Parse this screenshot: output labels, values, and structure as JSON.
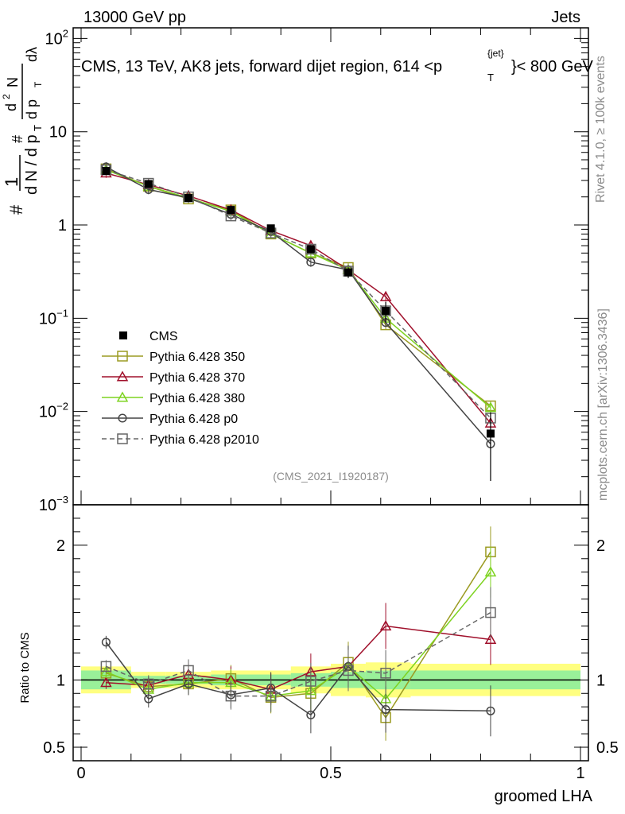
{
  "header": {
    "left": "13000 GeV pp",
    "right": "Jets",
    "title": "CMS, 13 TeV, AK8 jets, forward dijet region, 614 <p",
    "title_sup": "{jet}",
    "title_sub": "T",
    "title_end": "}< 800 GeV"
  },
  "sidebar": {
    "rivet": "Rivet 4.1.0, ≥ 100k events",
    "mcplots": "mcplots.cern.ch [arXiv:1306.3436]"
  },
  "analysis_tag": "(CMS_2021_I1920187)",
  "axes": {
    "ylabel_top": "# 1/dN/dp_T # d²N/dp_T dλ",
    "ylabel_ratio": "Ratio to CMS",
    "xlabel": "groomed LHA",
    "x_ticks": [
      "0",
      "0.5",
      "1"
    ],
    "y_ticks_top": [
      {
        "value": 100,
        "base": "10",
        "exp": "2"
      },
      {
        "value": 10,
        "base": "10",
        "exp": ""
      },
      {
        "value": 1,
        "base": "1",
        "exp": ""
      },
      {
        "value": 0.1,
        "base": "10",
        "exp": "−1"
      },
      {
        "value": 0.01,
        "base": "10",
        "exp": "−2"
      },
      {
        "value": 0.001,
        "base": "10",
        "exp": "−3"
      }
    ],
    "y_ticks_ratio": [
      {
        "value": 2,
        "label": "2"
      },
      {
        "value": 1,
        "label": "1"
      },
      {
        "value": 0.5,
        "label": "0.5"
      }
    ]
  },
  "chart_data": {
    "type": "line",
    "title": "CMS, 13 TeV, AK8 jets, forward dijet region, 614 < p_T^{jet} < 800 GeV",
    "xlabel": "groomed LHA",
    "ylabel": "1/dN/dp_T d²N/dp_T dλ",
    "xlim": [
      0,
      1
    ],
    "ylim": [
      0.001,
      130
    ],
    "yscale": "log",
    "ratio_ylim": [
      0.4,
      2.3
    ],
    "bin_edges": [
      0,
      0.1,
      0.17,
      0.26,
      0.34,
      0.42,
      0.5,
      0.57,
      0.66,
      1.0
    ],
    "x": [
      0.05,
      0.135,
      0.215,
      0.3,
      0.38,
      0.46,
      0.535,
      0.61,
      0.82
    ],
    "data": {
      "name": "CMS",
      "values": [
        3.8,
        2.75,
        1.95,
        1.45,
        0.92,
        0.55,
        0.31,
        0.12,
        0.0058
      ],
      "errors": [
        0.3,
        0.15,
        0.12,
        0.1,
        0.07,
        0.05,
        0.04,
        0.03,
        0.004
      ],
      "ratio_band_inner": [
        0.07,
        0.03,
        0.03,
        0.04,
        0.04,
        0.05,
        0.06,
        0.07,
        0.07
      ],
      "ratio_band_outer": [
        0.1,
        0.06,
        0.06,
        0.07,
        0.07,
        0.1,
        0.12,
        0.13,
        0.12
      ]
    },
    "series": [
      {
        "name": "Pythia 6.428 350",
        "color": "#9b9b22",
        "marker": "square",
        "values": [
          4.0,
          2.6,
          1.9,
          1.45,
          0.8,
          0.5,
          0.35,
          0.085,
          0.0115
        ],
        "ratio": [
          1.05,
          0.95,
          0.97,
          1.01,
          0.87,
          0.9,
          1.13,
          0.72,
          1.95
        ]
      },
      {
        "name": "Pythia 6.428 370",
        "color": "#a0102b",
        "marker": "triangle",
        "values": [
          3.6,
          2.7,
          2.05,
          1.45,
          0.87,
          0.6,
          0.33,
          0.17,
          0.0075
        ],
        "ratio": [
          0.98,
          0.96,
          1.04,
          1.0,
          0.93,
          1.06,
          1.1,
          1.4,
          1.3
        ]
      },
      {
        "name": "Pythia 6.428 380",
        "color": "#7ed321",
        "marker": "triangle",
        "values": [
          3.9,
          2.6,
          1.95,
          1.4,
          0.8,
          0.5,
          0.33,
          0.1,
          0.011
        ],
        "ratio": [
          1.06,
          0.93,
          0.98,
          0.98,
          0.88,
          0.92,
          1.1,
          0.86,
          1.8
        ]
      },
      {
        "name": "Pythia 6.428 p0",
        "color": "#444444",
        "marker": "circle",
        "values": [
          4.2,
          2.4,
          1.95,
          1.3,
          0.85,
          0.4,
          0.33,
          0.09,
          0.0045
        ],
        "ratio": [
          1.28,
          0.86,
          0.97,
          0.89,
          0.94,
          0.74,
          1.1,
          0.78,
          0.77
        ]
      },
      {
        "name": "Pythia 6.428 p2010",
        "color": "#666666",
        "marker": "square",
        "dashed": true,
        "values": [
          3.9,
          2.8,
          2.0,
          1.25,
          0.82,
          0.55,
          0.32,
          0.12,
          0.0085
        ],
        "ratio": [
          1.1,
          0.97,
          1.07,
          0.88,
          0.88,
          0.99,
          1.07,
          1.05,
          1.5
        ]
      }
    ]
  }
}
